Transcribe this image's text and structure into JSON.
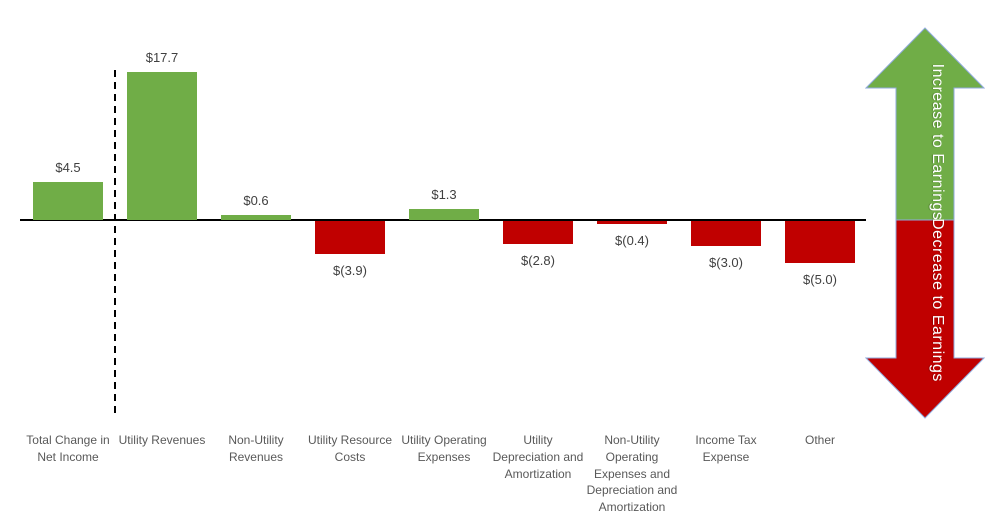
{
  "chart_data": {
    "type": "bar",
    "subtype": "earnings-contribution-waterfall",
    "title": "",
    "xlabel": "",
    "ylabel": "",
    "grid": false,
    "legend": false,
    "baseline": 0,
    "ylim": [
      -6,
      19
    ],
    "categories": [
      "Total Change in Net Income",
      "Utility Revenues",
      "Non-Utility Revenues",
      "Utility Resource Costs",
      "Utility Operating Expenses",
      "Utility Depreciation and Amortization",
      "Non-Utility Operating Expenses and Depreciation and Amortization",
      "Income Tax Expense",
      "Other"
    ],
    "values": [
      4.5,
      17.7,
      0.6,
      -3.9,
      1.3,
      -2.8,
      -0.4,
      -3.0,
      -5.0
    ],
    "data_labels": [
      "$4.5",
      "$17.7",
      "$0.6",
      "$(3.9)",
      "$1.3",
      "$(2.8)",
      "$(0.4)",
      "$(3.0)",
      "$(5.0)"
    ],
    "positive_color": "#70AD47",
    "negative_color": "#C00000",
    "separator_after_index": 0
  },
  "annotations": {
    "increase_arrow": {
      "label": "Increase to Earnings",
      "direction": "up",
      "color": "#70AD47"
    },
    "decrease_arrow": {
      "label": "Decrease to Earnings",
      "direction": "down",
      "color": "#C00000"
    }
  },
  "colors": {
    "axis": "#000000",
    "separator": "#000000",
    "value_label": "#404040",
    "category_label": "#595959",
    "arrow_text": "#FFFFFF",
    "arrow_outline": "#8FAADC"
  }
}
